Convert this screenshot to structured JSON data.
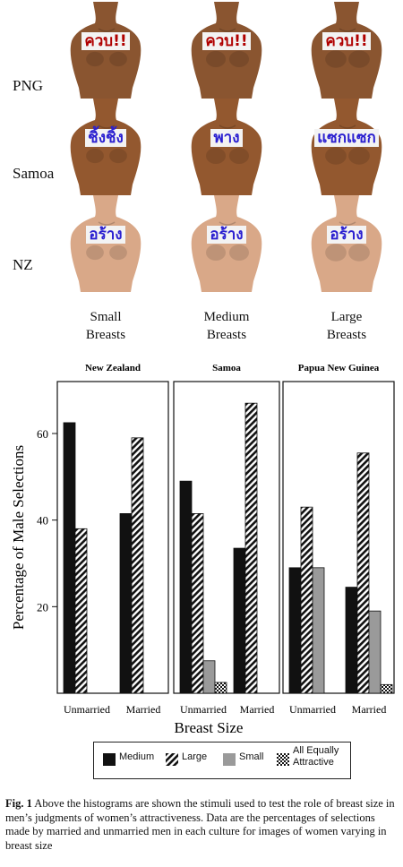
{
  "stimuli": {
    "rows": [
      {
        "label": "PNG",
        "overlays": [
          "ควบ!!",
          "ควบ!!",
          "ควบ!!"
        ],
        "skin": "#8a5530",
        "overlay_color": "red"
      },
      {
        "label": "Samoa",
        "overlays": [
          "ชิ้งชิ้ง",
          "พาง",
          "แซกแซก"
        ],
        "skin": "#93582f",
        "overlay_color": "blue"
      },
      {
        "label": "NZ",
        "overlays": [
          "อร้าง",
          "อร้าง",
          "อร้าง"
        ],
        "skin": "#d9a888",
        "overlay_color": "blue"
      }
    ],
    "columns": [
      {
        "line1": "Small",
        "line2": "Breasts"
      },
      {
        "line1": "Medium",
        "line2": "Breasts"
      },
      {
        "line1": "Large",
        "line2": "Breasts"
      }
    ]
  },
  "chart_data": {
    "type": "bar",
    "ylabel": "Percentage of Male Selections",
    "xlabel": "Breast Size",
    "ylim": [
      0,
      72
    ],
    "yticks": [
      20,
      40,
      60
    ],
    "categories": [
      "Unmarried",
      "Married"
    ],
    "series_names": [
      "Medium",
      "Large",
      "Small",
      "All Equally Attractive"
    ],
    "panels": [
      {
        "title": "New Zealand",
        "groups": [
          {
            "category": "Unmarried",
            "values": [
              62.5,
              38,
              0,
              0
            ]
          },
          {
            "category": "Married",
            "values": [
              41.5,
              59,
              0,
              0
            ]
          }
        ]
      },
      {
        "title": "Samoa",
        "groups": [
          {
            "category": "Unmarried",
            "values": [
              49,
              41.5,
              7.5,
              2.5
            ]
          },
          {
            "category": "Married",
            "values": [
              33.5,
              67,
              0,
              0
            ]
          }
        ]
      },
      {
        "title": "Papua New Guinea",
        "groups": [
          {
            "category": "Unmarried",
            "values": [
              29,
              43,
              29,
              0
            ]
          },
          {
            "category": "Married",
            "values": [
              24.5,
              55.5,
              19,
              2
            ]
          }
        ]
      }
    ],
    "legend": {
      "items": [
        {
          "label": "Medium",
          "pattern": "black"
        },
        {
          "label": "Large",
          "pattern": "hatch"
        },
        {
          "label": "Small",
          "pattern": "gray"
        },
        {
          "label_line1": "All Equally",
          "label_line2": "Attractive",
          "pattern": "checker"
        }
      ],
      "placement": "bottom"
    }
  },
  "caption": {
    "lead": "Fig. 1",
    "text": "Above the histograms are shown the stimuli used to test the role of breast size in men’s judgments of women’s attractiveness. Data are the percentages of selections made by married and unmarried men in each culture for images of women varying in breast size"
  }
}
